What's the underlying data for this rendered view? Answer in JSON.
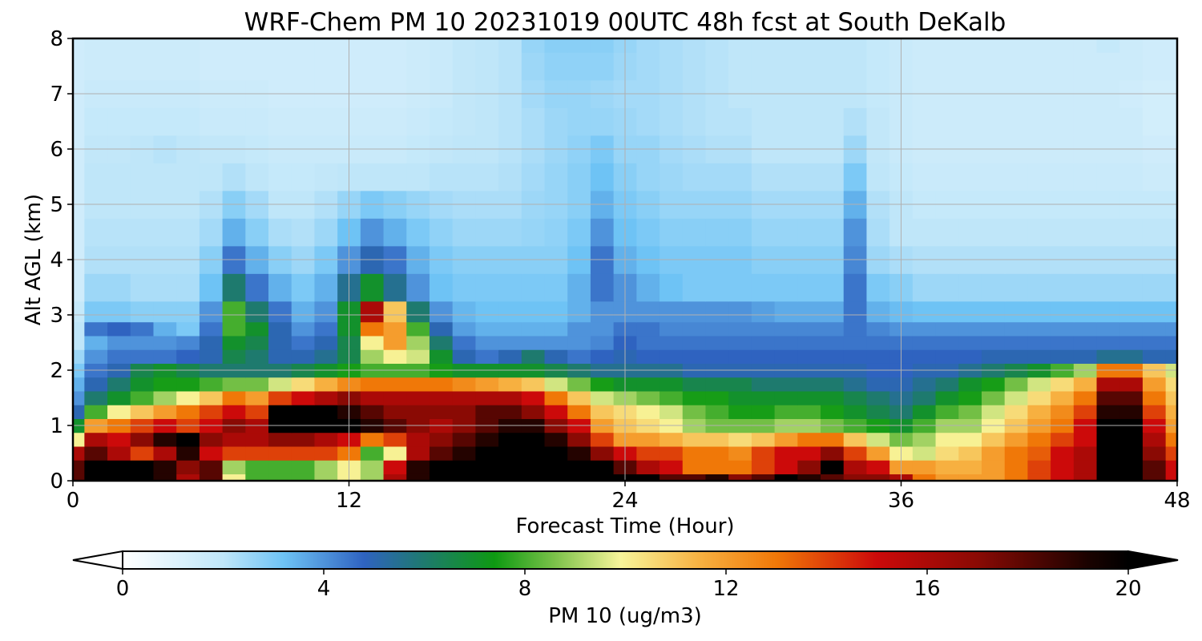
{
  "chart_data": {
    "type": "heatmap",
    "title": "WRF-Chem PM 10  20231019 00UTC 48h fcst at South DeKalb",
    "xlabel": "Forecast Time (Hour)",
    "ylabel": "Alt AGL (km)",
    "xlim": [
      0,
      48
    ],
    "ylim": [
      0,
      8
    ],
    "x_ticks": [
      "0",
      "12",
      "24",
      "36",
      "48"
    ],
    "y_ticks": [
      "0",
      "1",
      "2",
      "3",
      "4",
      "5",
      "6",
      "7",
      "8"
    ],
    "grid": true,
    "colorbar": {
      "label": "PM 10  (ug/m3)",
      "range": [
        0,
        20
      ],
      "ticks": [
        "0",
        "4",
        "8",
        "12",
        "16",
        "20"
      ],
      "extend": "both",
      "stops": [
        {
          "v": 0,
          "c": "#ffffff"
        },
        {
          "v": 2,
          "c": "#bfe6f9"
        },
        {
          "v": 3.2,
          "c": "#6ec3f5"
        },
        {
          "v": 4.8,
          "c": "#2f63c0"
        },
        {
          "v": 6,
          "c": "#1e7a6e"
        },
        {
          "v": 7.4,
          "c": "#0e9a12"
        },
        {
          "v": 8.6,
          "c": "#7cc24a"
        },
        {
          "v": 9.9,
          "c": "#f7f59a"
        },
        {
          "v": 11.5,
          "c": "#f7b040"
        },
        {
          "v": 13,
          "c": "#f07808"
        },
        {
          "v": 15,
          "c": "#cc0a0a"
        },
        {
          "v": 17,
          "c": "#8a0a04"
        },
        {
          "v": 19.2,
          "c": "#1a0200"
        },
        {
          "v": 20,
          "c": "#000000"
        }
      ]
    },
    "x_hours": [
      0,
      1,
      2,
      3,
      4,
      5,
      6,
      7,
      8,
      9,
      10,
      11,
      12,
      13,
      14,
      15,
      16,
      17,
      18,
      19,
      20,
      21,
      22,
      23,
      24,
      25,
      26,
      27,
      28,
      29,
      30,
      31,
      32,
      33,
      34,
      35,
      36,
      37,
      38,
      39,
      40,
      41,
      42,
      43,
      44,
      45,
      46,
      47,
      48
    ],
    "y_km": [
      0,
      0.25,
      0.5,
      0.75,
      1,
      1.25,
      1.5,
      1.75,
      2,
      2.25,
      2.5,
      2.75,
      3,
      3.5,
      4,
      4.5,
      5,
      5.5,
      6,
      6.5,
      7,
      7.5,
      8
    ],
    "values": [
      [
        18,
        20,
        20,
        20,
        19,
        16,
        18,
        10,
        8,
        8,
        8,
        9,
        10,
        9,
        16,
        19,
        20,
        20,
        20,
        20,
        20,
        20,
        20,
        20,
        20,
        20,
        18,
        18,
        19,
        17,
        18,
        20,
        19,
        18,
        17,
        17,
        16,
        13,
        12,
        12,
        12,
        13,
        14,
        15,
        16,
        20,
        20,
        18,
        15
      ],
      [
        18,
        20,
        20,
        20,
        19,
        17,
        18,
        9,
        8,
        8,
        8,
        9,
        10,
        9,
        15,
        19,
        20,
        20,
        20,
        20,
        20,
        20,
        20,
        20,
        18,
        16,
        15,
        13,
        13,
        13,
        14,
        15,
        17,
        20,
        16,
        15,
        12,
        12,
        11.5,
        11.5,
        12,
        13,
        14,
        15,
        16,
        20,
        20,
        18,
        15
      ],
      [
        16,
        18,
        16,
        14,
        16,
        19,
        15,
        14,
        14,
        14,
        14,
        14,
        13,
        8,
        10,
        16,
        18,
        19,
        20,
        20,
        20,
        20,
        19,
        17,
        15,
        14,
        14,
        13,
        13,
        12.5,
        14,
        15,
        15,
        17,
        14,
        12,
        10,
        9.5,
        10.5,
        11,
        12,
        13,
        13.5,
        15,
        16,
        20,
        20,
        17,
        14
      ],
      [
        10,
        16,
        15,
        17,
        19,
        20,
        17,
        16,
        16,
        17,
        17,
        16,
        15,
        13,
        14,
        16,
        17,
        18,
        19,
        20,
        20,
        19,
        17,
        14,
        12,
        12,
        11.5,
        11,
        11,
        10.5,
        11,
        12,
        13,
        13,
        11,
        9.5,
        8.5,
        9,
        10,
        10,
        11,
        12,
        13,
        14,
        15,
        20,
        20,
        16,
        13
      ],
      [
        7,
        12,
        13,
        14,
        15,
        14,
        15,
        17,
        16,
        20,
        20,
        20,
        20,
        19,
        18,
        17,
        16,
        17,
        18,
        19,
        19,
        17,
        15,
        12,
        11,
        10.5,
        10,
        9,
        8.5,
        8.5,
        8.5,
        9,
        9,
        8.5,
        8,
        7.5,
        7,
        8,
        9,
        9,
        10,
        11,
        12,
        13,
        15,
        20,
        20,
        15,
        12
      ],
      [
        5,
        8,
        10,
        11,
        12,
        13,
        14,
        15,
        14,
        20,
        20,
        20,
        19,
        18,
        17,
        17,
        17,
        17,
        18,
        18,
        17,
        15,
        13,
        11,
        10.5,
        10,
        9.5,
        8.5,
        8,
        7.5,
        7.5,
        8,
        8,
        7.5,
        7,
        6.5,
        6,
        7,
        8,
        8.5,
        9.5,
        10.5,
        11.5,
        12.5,
        14,
        19,
        19,
        14,
        11.5
      ],
      [
        4,
        6,
        7,
        8,
        9,
        10,
        11,
        13,
        12,
        14,
        15,
        16,
        17,
        16,
        16,
        16,
        16,
        16,
        16,
        16,
        15,
        13,
        11,
        9.5,
        9,
        8.5,
        8,
        7.5,
        7.5,
        7,
        7,
        7,
        7,
        7,
        6.5,
        6,
        5.5,
        6,
        7,
        7.5,
        8.5,
        9.5,
        10.5,
        11.5,
        13,
        18,
        18,
        13,
        11
      ],
      [
        3.5,
        5,
        6,
        7,
        7.5,
        7.5,
        8,
        8.5,
        8.5,
        9.5,
        10.5,
        11.5,
        12.5,
        13,
        13,
        13,
        13,
        12.5,
        12,
        11.5,
        11,
        9.5,
        8.5,
        7.5,
        7,
        7,
        7,
        6.5,
        6.5,
        6.5,
        6,
        6,
        6,
        6,
        5.5,
        5,
        5,
        5.5,
        6,
        7,
        7.5,
        8.5,
        9.5,
        10.5,
        11.5,
        16,
        16,
        12,
        10.5
      ],
      [
        3,
        4.5,
        5,
        6.5,
        7,
        6.5,
        6,
        6,
        6,
        6,
        6.5,
        7,
        7.5,
        8,
        8,
        8,
        7.5,
        7,
        7,
        7,
        7,
        6.5,
        6,
        5.5,
        5.5,
        5.5,
        5.5,
        5,
        5,
        5,
        5,
        5,
        5,
        5,
        5,
        4.8,
        4.8,
        5,
        5,
        5.5,
        6,
        6.5,
        7,
        8,
        9,
        13,
        13,
        11,
        9.5
      ],
      [
        2.5,
        4,
        4.5,
        4.5,
        4.5,
        4.8,
        5,
        6.5,
        6,
        5,
        5,
        5.5,
        6.5,
        9,
        10,
        9.5,
        7,
        5,
        4.5,
        5,
        6,
        5,
        4.5,
        4.8,
        5,
        4.8,
        4.8,
        4.8,
        4.8,
        4.8,
        4.8,
        4.8,
        4.8,
        4.8,
        4.8,
        4.8,
        4.8,
        4.8,
        4.8,
        4.8,
        5,
        5,
        5,
        5,
        5,
        5.5,
        5.5,
        5,
        5
      ],
      [
        2,
        3.5,
        4,
        4,
        4,
        4.2,
        5,
        7,
        6.5,
        5,
        4.5,
        5,
        6.5,
        10,
        12,
        9,
        6,
        4.5,
        4,
        4,
        4,
        4,
        4,
        4.2,
        4.8,
        4.5,
        4.5,
        4.5,
        4.5,
        4.5,
        4.5,
        4.5,
        4.5,
        4.5,
        4.5,
        4.5,
        4.5,
        4.5,
        4.5,
        4.5,
        4.5,
        4.5,
        4.5,
        4.5,
        4.5,
        4.5,
        4.5,
        4.5,
        4.5
      ],
      [
        2,
        4.5,
        4.8,
        4.5,
        3.5,
        3,
        4.5,
        8,
        7,
        5,
        4,
        4.5,
        7,
        13,
        12,
        8,
        5,
        3.8,
        3.5,
        3.5,
        3.5,
        3.5,
        4,
        4,
        4.5,
        4.5,
        4.2,
        4.2,
        4.2,
        4.2,
        4.2,
        4.2,
        4.2,
        4.2,
        4.5,
        4.2,
        4,
        4,
        4,
        4,
        4,
        4,
        4,
        4,
        4,
        4,
        4,
        4,
        4
      ],
      [
        1.8,
        3,
        3,
        2.8,
        2.8,
        2.8,
        4,
        8,
        6,
        4.5,
        3.5,
        4,
        7,
        16,
        11,
        6,
        4,
        3.4,
        3.2,
        3.2,
        3.2,
        3.2,
        3.5,
        4,
        4,
        4,
        4,
        4,
        4,
        4,
        3.8,
        3.6,
        3.6,
        3.6,
        4.5,
        3.5,
        3.3,
        3.2,
        3.2,
        3.2,
        3.2,
        3.2,
        3.2,
        3.2,
        3.2,
        3.2,
        3.2,
        3.2,
        3.2
      ],
      [
        1.5,
        2.5,
        2.5,
        2.3,
        2.3,
        2.3,
        3.2,
        6,
        4.5,
        3.5,
        3,
        3.5,
        5.5,
        7,
        5.5,
        4,
        3.2,
        3,
        3,
        3,
        3,
        3,
        3.5,
        4.5,
        4,
        3.5,
        3.2,
        3,
        3,
        3,
        3,
        3,
        3,
        3,
        4.5,
        3,
        2.8,
        2.5,
        2.5,
        2.5,
        2.5,
        2.5,
        2.5,
        2.5,
        2.5,
        2.5,
        2.5,
        2.5,
        2.5
      ],
      [
        1.5,
        2.2,
        2.2,
        2.2,
        2.2,
        2.2,
        2.8,
        4.5,
        3.5,
        2.8,
        2.5,
        3,
        4,
        5,
        4.5,
        3.5,
        3,
        2.8,
        2.8,
        2.8,
        2.8,
        2.8,
        3.2,
        4.5,
        3.5,
        3.2,
        3,
        3,
        3,
        3,
        2.8,
        2.8,
        2.8,
        2.8,
        4.2,
        2.5,
        2.3,
        2.2,
        2.2,
        2.2,
        2.2,
        2.2,
        2.2,
        2.2,
        2.2,
        2.2,
        2.2,
        2.2,
        2.2
      ],
      [
        1.5,
        2.1,
        2.1,
        2.1,
        2.1,
        2.1,
        2.4,
        3.5,
        2.8,
        2.3,
        2.2,
        2.5,
        3.2,
        4,
        3.5,
        3,
        2.7,
        2.5,
        2.5,
        2.5,
        2.6,
        2.7,
        3,
        4,
        3.2,
        3,
        2.8,
        2.8,
        2.8,
        2.8,
        2.6,
        2.6,
        2.6,
        2.6,
        4,
        2.3,
        2,
        2,
        2,
        2,
        2,
        2,
        2,
        2,
        2,
        2,
        2,
        2,
        2
      ],
      [
        1.5,
        2,
        2,
        2,
        2,
        2,
        2.2,
        2.8,
        2.4,
        2,
        2,
        2.2,
        2.6,
        3,
        2.8,
        2.6,
        2.4,
        2.3,
        2.3,
        2.3,
        2.5,
        2.6,
        2.8,
        3.5,
        3,
        2.8,
        2.6,
        2.6,
        2.6,
        2.6,
        2.4,
        2.4,
        2.4,
        2.4,
        3.5,
        2.2,
        2,
        1.8,
        1.8,
        1.8,
        1.8,
        1.8,
        1.8,
        1.8,
        1.8,
        1.8,
        1.8,
        1.8,
        1.8
      ],
      [
        1.5,
        2,
        2,
        2,
        2,
        2,
        2,
        2.2,
        2,
        1.8,
        1.8,
        1.9,
        2,
        2,
        2,
        2,
        2.1,
        2.1,
        2.1,
        2.2,
        2.4,
        2.6,
        2.8,
        3.2,
        2.8,
        2.6,
        2.5,
        2.4,
        2.4,
        2.4,
        2.2,
        2.2,
        2.2,
        2.2,
        3,
        2,
        1.8,
        1.7,
        1.7,
        1.7,
        1.7,
        1.7,
        1.7,
        1.7,
        1.7,
        1.7,
        1.7,
        1.6,
        1.6
      ],
      [
        1.5,
        1.9,
        1.9,
        2,
        2.1,
        2,
        1.9,
        1.9,
        1.8,
        1.7,
        1.7,
        1.7,
        1.7,
        1.7,
        1.7,
        1.8,
        1.9,
        2,
        2,
        2.1,
        2.3,
        2.5,
        2.7,
        3,
        2.6,
        2.6,
        2.4,
        2.3,
        2.2,
        2.2,
        2,
        2,
        2,
        2,
        2.5,
        1.9,
        1.7,
        1.6,
        1.6,
        1.6,
        1.6,
        1.6,
        1.6,
        1.6,
        1.6,
        1.6,
        1.6,
        1.5,
        1.5
      ],
      [
        1.5,
        1.8,
        1.8,
        1.8,
        1.8,
        1.8,
        1.7,
        1.7,
        1.7,
        1.6,
        1.6,
        1.6,
        1.6,
        1.6,
        1.6,
        1.7,
        1.8,
        1.9,
        2,
        2.1,
        2.3,
        2.5,
        2.6,
        2.6,
        2.5,
        2.4,
        2.3,
        2.2,
        2.1,
        2.1,
        2,
        2,
        2,
        2,
        2.2,
        1.9,
        1.7,
        1.6,
        1.6,
        1.6,
        1.6,
        1.6,
        1.6,
        1.6,
        1.6,
        1.6,
        1.6,
        1.4,
        1.4
      ],
      [
        1.5,
        1.7,
        1.7,
        1.7,
        1.7,
        1.7,
        1.6,
        1.6,
        1.6,
        1.5,
        1.5,
        1.5,
        1.5,
        1.5,
        1.5,
        1.6,
        1.7,
        1.9,
        2,
        2.1,
        2.4,
        2.6,
        2.6,
        2.5,
        2.4,
        2.4,
        2.3,
        2.2,
        2.1,
        2,
        2,
        2,
        2,
        2,
        2,
        1.8,
        1.7,
        1.6,
        1.6,
        1.6,
        1.6,
        1.6,
        1.6,
        1.6,
        1.6,
        1.6,
        1.5,
        1.4,
        1.4
      ],
      [
        1.5,
        1.6,
        1.6,
        1.6,
        1.6,
        1.6,
        1.5,
        1.5,
        1.5,
        1.5,
        1.5,
        1.5,
        1.5,
        1.5,
        1.5,
        1.6,
        1.7,
        1.9,
        2,
        2.1,
        2.5,
        2.7,
        2.7,
        2.7,
        2.5,
        2.4,
        2.3,
        2.2,
        2.1,
        2,
        2,
        2,
        2,
        2,
        2,
        1.8,
        1.7,
        1.6,
        1.6,
        1.6,
        1.6,
        1.6,
        1.6,
        1.6,
        1.6,
        1.6,
        1.6,
        1.5,
        1.5
      ],
      [
        1.5,
        1.6,
        1.6,
        1.6,
        1.6,
        1.6,
        1.5,
        1.5,
        1.5,
        1.5,
        1.5,
        1.5,
        1.5,
        1.5,
        1.5,
        1.6,
        1.7,
        1.9,
        2,
        2.1,
        2.6,
        2.8,
        2.8,
        2.8,
        2.6,
        2.4,
        2.3,
        2.2,
        2.1,
        2,
        2,
        2,
        2,
        2,
        2,
        1.8,
        1.7,
        1.6,
        1.6,
        1.6,
        1.6,
        1.6,
        1.6,
        1.6,
        1.6,
        1.8,
        1.6,
        1.5,
        1.5
      ]
    ]
  }
}
